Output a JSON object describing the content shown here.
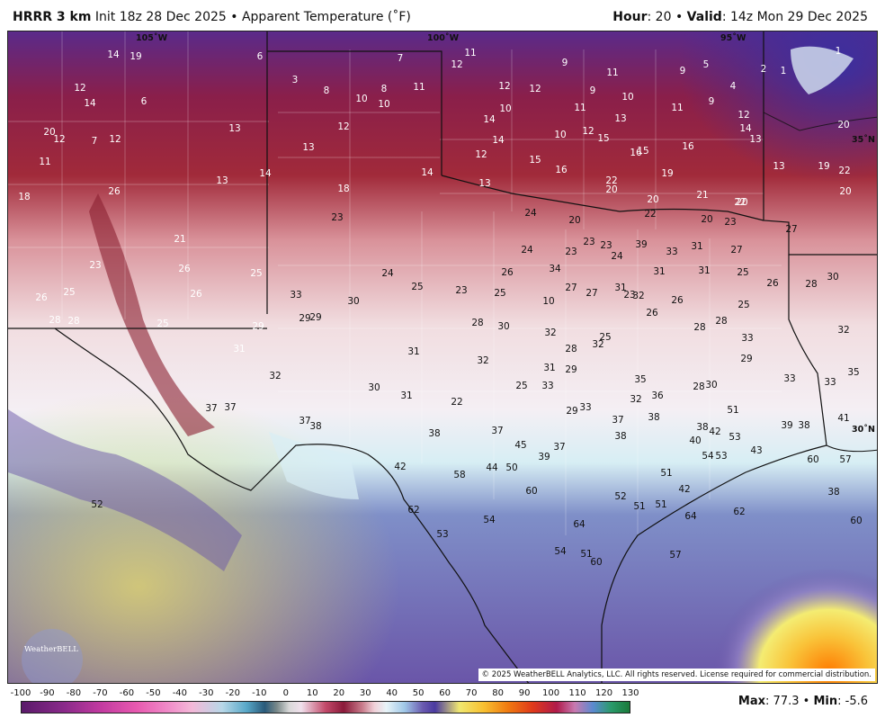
{
  "header": {
    "model": "HRRR 3 km",
    "init": "Init 18z 28 Dec 2025",
    "separator": "•",
    "product": "Apparent Temperature (˚F)",
    "hour_label": "Hour",
    "hour_value": ": 20",
    "valid_label": "Valid",
    "valid_value": ": 14z Mon 29 Dec 2025"
  },
  "map": {
    "coord_labels": [
      {
        "text": "105˚W"
      },
      {
        "text": "100˚W"
      },
      {
        "text": "95˚W"
      },
      {
        "text": "35˚N"
      },
      {
        "text": "30˚N"
      }
    ],
    "values": [
      "14",
      "19",
      "6",
      "7",
      "11",
      "12",
      "9",
      "11",
      "9",
      "5",
      "1",
      "2",
      "1",
      "12",
      "14",
      "6",
      "3",
      "8",
      "10",
      "8",
      "10",
      "11",
      "12",
      "12",
      "9",
      "4",
      "10",
      "10",
      "11",
      "9",
      "11",
      "12",
      "14",
      "20",
      "12",
      "7",
      "12",
      "13",
      "12",
      "14",
      "10",
      "12",
      "13",
      "14",
      "13",
      "15",
      "12",
      "15",
      "16",
      "13",
      "13",
      "19",
      "20",
      "11",
      "26",
      "18",
      "13",
      "14",
      "14",
      "15",
      "16",
      "16",
      "19",
      "22",
      "20",
      "18",
      "22",
      "20",
      "20",
      "21",
      "20",
      "20",
      "22",
      "20",
      "23",
      "22",
      "13",
      "24",
      "23",
      "21",
      "23",
      "24",
      "23",
      "23",
      "24",
      "39",
      "33",
      "31",
      "27",
      "27",
      "23",
      "26",
      "25",
      "24",
      "25",
      "23",
      "26",
      "34",
      "27",
      "23",
      "31",
      "31",
      "25",
      "26",
      "26",
      "25",
      "26",
      "33",
      "30",
      "25",
      "10",
      "27",
      "31",
      "32",
      "26",
      "26",
      "25",
      "28",
      "30",
      "28",
      "28",
      "25",
      "29",
      "29",
      "29",
      "28",
      "30",
      "32",
      "28",
      "32",
      "25",
      "28",
      "28",
      "33",
      "32",
      "32",
      "31",
      "29",
      "31",
      "31",
      "32",
      "30",
      "31",
      "22",
      "25",
      "33",
      "29",
      "33",
      "35",
      "32",
      "36",
      "28",
      "30",
      "29",
      "33",
      "33",
      "35",
      "37",
      "37",
      "37",
      "38",
      "38",
      "37",
      "45",
      "39",
      "37",
      "37",
      "38",
      "38",
      "38",
      "42",
      "51",
      "39",
      "38",
      "41",
      "40",
      "53",
      "54",
      "53",
      "43",
      "42",
      "58",
      "44",
      "50",
      "51",
      "42",
      "57",
      "60",
      "60",
      "52",
      "51",
      "51",
      "52",
      "62",
      "64",
      "54",
      "62",
      "64",
      "38",
      "53",
      "60",
      "51",
      "54",
      "60",
      "57"
    ],
    "copyright": "© 2025 WeatherBELL Analytics, LLC. All rights reserved. License required for commercial distribution.",
    "logo_text": "WeatherBELL"
  },
  "colorbar": {
    "ticks": [
      "-100",
      "-90",
      "-80",
      "-70",
      "-60",
      "-50",
      "-40",
      "-30",
      "-20",
      "-10",
      "0",
      "10",
      "20",
      "30",
      "40",
      "50",
      "60",
      "70",
      "80",
      "90",
      "100",
      "110",
      "120",
      "130"
    ],
    "max_label": "Max",
    "max_value": ": 77.3",
    "sep": "•",
    "min_label": "Min",
    "min_value": ": -5.6"
  }
}
